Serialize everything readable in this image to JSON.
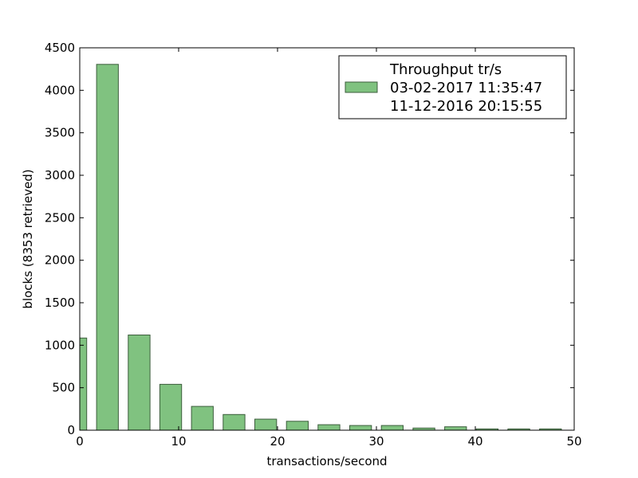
{
  "chart_data": {
    "type": "bar",
    "xlabel": "transactions/second",
    "ylabel": "blocks (8353 retrieved)",
    "xlim": [
      0,
      50
    ],
    "ylim": [
      0,
      4500
    ],
    "xticks": [
      0,
      10,
      20,
      30,
      40,
      50
    ],
    "yticks": [
      0,
      500,
      1000,
      1500,
      2000,
      2500,
      3000,
      3500,
      4000,
      4500
    ],
    "bin_width": 3.2,
    "bar_width": 2.2,
    "bar_color": "#80c280",
    "bar_edge_color": "#3d5e3d",
    "grid": false,
    "legend_position": "top-right",
    "legend_lines": [
      "Throughput tr/s",
      "03-02-2017 11:35:47",
      "11-12-2016 20:15:55"
    ],
    "bins": [
      {
        "start": -1.5,
        "value": 1085
      },
      {
        "start": 1.7,
        "value": 4305
      },
      {
        "start": 4.9,
        "value": 1120
      },
      {
        "start": 8.1,
        "value": 540
      },
      {
        "start": 11.3,
        "value": 280
      },
      {
        "start": 14.5,
        "value": 185
      },
      {
        "start": 17.7,
        "value": 130
      },
      {
        "start": 20.9,
        "value": 105
      },
      {
        "start": 24.1,
        "value": 65
      },
      {
        "start": 27.3,
        "value": 55
      },
      {
        "start": 30.5,
        "value": 55
      },
      {
        "start": 33.7,
        "value": 25
      },
      {
        "start": 36.9,
        "value": 40
      },
      {
        "start": 40.1,
        "value": 15
      },
      {
        "start": 43.3,
        "value": 15
      },
      {
        "start": 46.5,
        "value": 15
      }
    ]
  }
}
